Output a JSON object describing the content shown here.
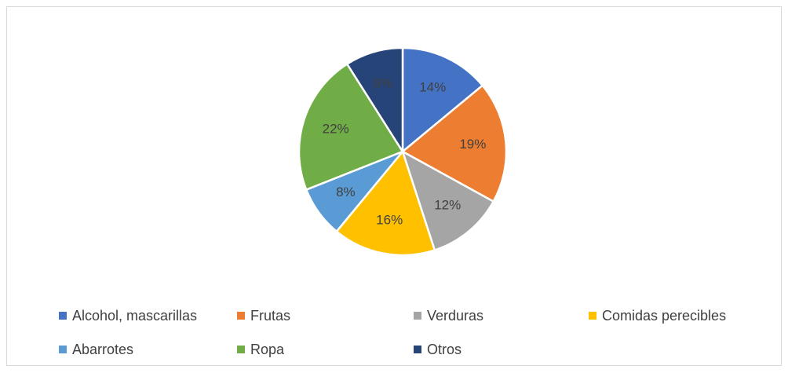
{
  "chart_data": {
    "type": "pie",
    "categories": [
      "Alcohol, mascarillas",
      "Frutas",
      "Verduras",
      "Comidas perecibles",
      "Abarrotes",
      "Ropa",
      "Otros"
    ],
    "values": [
      14,
      19,
      12,
      16,
      8,
      22,
      9
    ],
    "value_labels": [
      "14%",
      "19%",
      "12%",
      "16%",
      "8%",
      "22%",
      "9%"
    ],
    "colors": [
      "#4472c4",
      "#ed7d31",
      "#a5a5a5",
      "#ffc000",
      "#5b9bd5",
      "#70ad47",
      "#264478"
    ],
    "legend": "bottom"
  }
}
